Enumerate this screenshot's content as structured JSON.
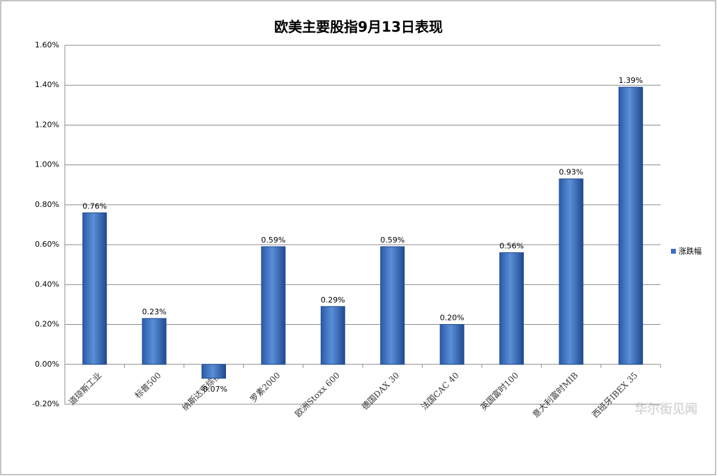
{
  "chart_data": {
    "type": "bar",
    "title": "欧美主要股指9月13日表现",
    "categories": [
      "道琼斯工业",
      "标普500",
      "纳斯达克综指",
      "罗素2000",
      "欧洲Stoxx 600",
      "德国DAX 30",
      "法国CAC 40",
      "英国富时100",
      "意大利富时MIB",
      "西班牙IBEX 35"
    ],
    "series": [
      {
        "name": "涨跌幅",
        "color": "#3a6fc4",
        "values": [
          0.76,
          0.23,
          -0.07,
          0.59,
          0.29,
          0.59,
          0.2,
          0.56,
          0.93,
          1.39
        ],
        "value_labels": [
          "0.76%",
          "0.23%",
          "-0.07%",
          "0.59%",
          "0.29%",
          "0.59%",
          "0.20%",
          "0.56%",
          "0.93%",
          "1.39%"
        ]
      }
    ],
    "ylim": [
      -0.2,
      1.6
    ],
    "yticks": [
      {
        "value": -0.2,
        "label": "-0.20%"
      },
      {
        "value": 0,
        "label": "0.00%"
      },
      {
        "value": 0.2,
        "label": "0.20%"
      },
      {
        "value": 0.4,
        "label": "0.40%"
      },
      {
        "value": 0.6,
        "label": "0.60%"
      },
      {
        "value": 0.8,
        "label": "0.80%"
      },
      {
        "value": 1.0,
        "label": "1.00%"
      },
      {
        "value": 1.2,
        "label": "1.20%"
      },
      {
        "value": 1.4,
        "label": "1.40%"
      },
      {
        "value": 1.6,
        "label": "1.60%"
      }
    ],
    "grid": true,
    "legend": "right",
    "watermark": "华尔街见闻"
  }
}
